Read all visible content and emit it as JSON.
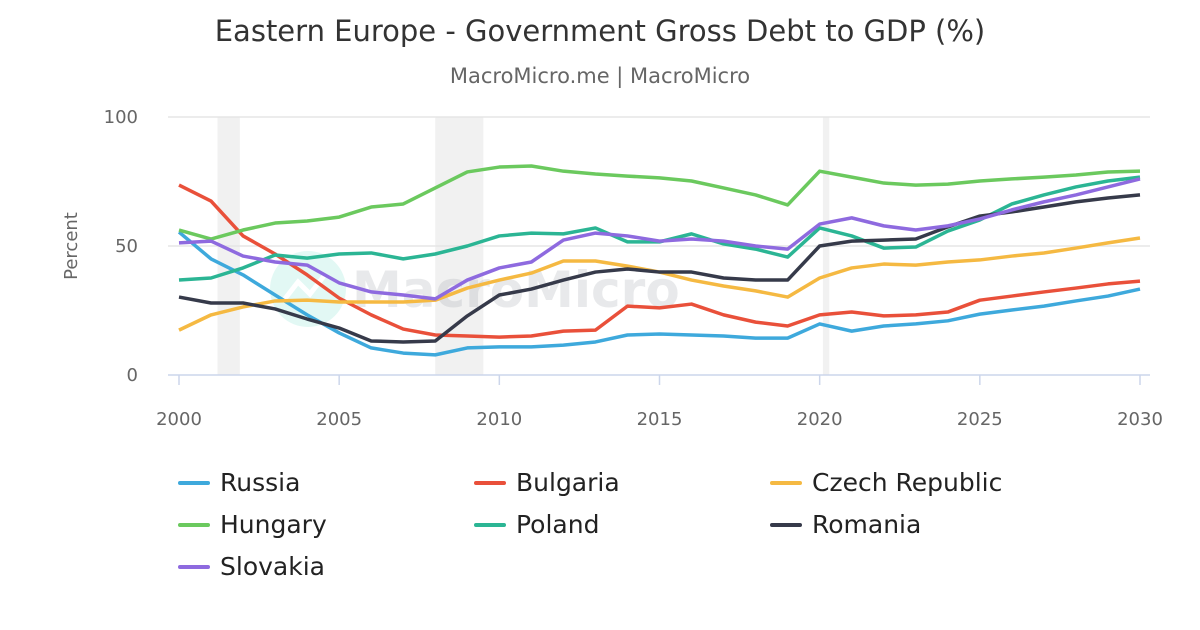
{
  "chart_data": {
    "type": "line",
    "title": "Eastern Europe - Government Gross Debt to GDP (%)",
    "subtitle": "MacroMicro.me | MacroMicro",
    "watermark": "MacroMicro",
    "xlabel": "",
    "ylabel": "Percent",
    "xlim": [
      2000,
      2030
    ],
    "ylim": [
      0,
      100
    ],
    "x_ticks": [
      "2000",
      "2005",
      "2010",
      "2015",
      "2020",
      "2025",
      "2030"
    ],
    "y_ticks": [
      "0",
      "50",
      "100"
    ],
    "grid": "horizontal",
    "legend_position": "bottom",
    "shaded_periods": [
      [
        2001.2,
        2001.9
      ],
      [
        2008.0,
        2009.5
      ],
      [
        2020.1,
        2020.3
      ]
    ],
    "x": [
      2000,
      2001,
      2002,
      2003,
      2004,
      2005,
      2006,
      2007,
      2008,
      2009,
      2010,
      2011,
      2012,
      2013,
      2014,
      2015,
      2016,
      2017,
      2018,
      2019,
      2020,
      2021,
      2022,
      2023,
      2024,
      2025,
      2026,
      2027,
      2028,
      2029,
      2030
    ],
    "series": [
      {
        "name": "Russia",
        "color": "#3ea9dc",
        "values": [
          55.4,
          45,
          38.8,
          31,
          23.3,
          16.3,
          10.5,
          8.5,
          7.8,
          10.5,
          10.9,
          10.9,
          11.6,
          12.8,
          15.5,
          15.9,
          15.5,
          15.1,
          14.3,
          14.3,
          19.8,
          17,
          19,
          19.8,
          21,
          23.6,
          25.2,
          26.7,
          28.7,
          30.6,
          33.3
        ]
      },
      {
        "name": "Bulgaria",
        "color": "#e9503a",
        "values": [
          73.6,
          67.4,
          53.9,
          46.9,
          38.8,
          29.8,
          23.3,
          17.8,
          15.5,
          15.1,
          14.7,
          15.1,
          17,
          17.4,
          26.7,
          26,
          27.5,
          23.3,
          20.5,
          19,
          23.3,
          24.4,
          22.9,
          23.3,
          24.4,
          29,
          30.6,
          32.2,
          33.7,
          35.3,
          36.4
        ]
      },
      {
        "name": "Czech Republic",
        "color": "#f5b942",
        "values": [
          17.4,
          23.3,
          26.4,
          28.7,
          29,
          28.3,
          28.3,
          28.3,
          29,
          33.7,
          36.8,
          39.5,
          44.2,
          44.2,
          42.2,
          39.9,
          36.8,
          34.5,
          32.6,
          30.2,
          37.6,
          41.5,
          43,
          42.6,
          43.8,
          44.6,
          46.1,
          47.3,
          49.2,
          51.2,
          53.1
        ]
      },
      {
        "name": "Hungary",
        "color": "#6bc95e",
        "values": [
          56.2,
          52.7,
          56.2,
          58.9,
          59.7,
          61.2,
          65.1,
          66.3,
          72.5,
          78.7,
          80.6,
          81,
          79,
          77.9,
          77.1,
          76.4,
          75.2,
          72.5,
          69.8,
          65.9,
          79,
          76.7,
          74.4,
          73.6,
          74,
          75.2,
          76,
          76.7,
          77.5,
          78.7,
          79
        ]
      },
      {
        "name": "Poland",
        "color": "#2bb594",
        "values": [
          36.8,
          37.6,
          41.5,
          46.5,
          45.3,
          46.9,
          47.3,
          45,
          46.9,
          50,
          53.9,
          55,
          54.7,
          57,
          51.6,
          51.6,
          54.7,
          50.8,
          48.8,
          45.7,
          57,
          53.9,
          49.2,
          49.6,
          55.8,
          60.1,
          66.3,
          69.8,
          72.9,
          75.2,
          76.7
        ]
      },
      {
        "name": "Romania",
        "color": "#363a4a",
        "values": [
          30.2,
          27.9,
          27.9,
          25.6,
          21.7,
          18.2,
          13.2,
          12.8,
          13.2,
          22.9,
          31,
          33.3,
          36.8,
          39.9,
          41.1,
          39.9,
          39.9,
          37.6,
          36.8,
          36.8,
          50,
          51.9,
          52.3,
          52.7,
          57.4,
          61.6,
          63.2,
          65.1,
          67.1,
          68.6,
          69.8
        ]
      },
      {
        "name": "Slovakia",
        "color": "#8e6adf",
        "values": [
          51.2,
          51.9,
          46.1,
          43.8,
          42.6,
          35.7,
          32.2,
          31,
          29.5,
          36.8,
          41.5,
          43.8,
          52.3,
          55,
          53.9,
          51.9,
          52.7,
          51.9,
          50,
          48.8,
          58.5,
          60.9,
          57.8,
          56.2,
          57.8,
          60.5,
          64,
          67.1,
          69.8,
          72.9,
          76
        ]
      }
    ]
  }
}
